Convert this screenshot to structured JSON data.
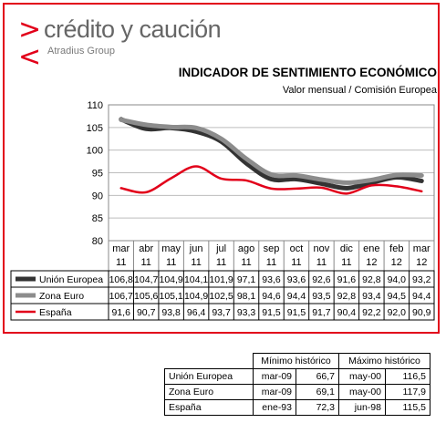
{
  "brand": {
    "name": "crédito y caución",
    "group": "Atradius Group",
    "accent_color": "#e2001a"
  },
  "chart_data": {
    "type": "line",
    "title": "INDICADOR DE SENTIMIENTO ECONÓMICO",
    "subtitle": "Valor mensual / Comisión Europea",
    "categories": [
      [
        "mar",
        "11"
      ],
      [
        "abr",
        "11"
      ],
      [
        "may",
        "11"
      ],
      [
        "jun",
        "11"
      ],
      [
        "jul",
        "11"
      ],
      [
        "ago",
        "11"
      ],
      [
        "sep",
        "11"
      ],
      [
        "oct",
        "11"
      ],
      [
        "nov",
        "11"
      ],
      [
        "dic",
        "11"
      ],
      [
        "ene",
        "12"
      ],
      [
        "feb",
        "12"
      ],
      [
        "mar",
        "12"
      ]
    ],
    "ylim": [
      80,
      110
    ],
    "yticks": [
      80,
      85,
      90,
      95,
      100,
      105,
      110
    ],
    "grid": true,
    "legend": "table-below",
    "series": [
      {
        "name": "Unión Europea",
        "color": "#333333",
        "width": 5,
        "values": [
          106.8,
          104.7,
          104.9,
          104.1,
          101.9,
          97.1,
          93.6,
          93.6,
          92.6,
          91.6,
          92.8,
          94.0,
          93.2
        ],
        "labels": [
          "106,8",
          "104,7",
          "104,9",
          "104,1",
          "101,9",
          "97,1",
          "93,6",
          "93,6",
          "92,6",
          "91,6",
          "92,8",
          "94,0",
          "93,2"
        ]
      },
      {
        "name": "Zona Euro",
        "color": "#8c8c8c",
        "width": 5,
        "values": [
          106.7,
          105.6,
          105.1,
          104.9,
          102.5,
          98.1,
          94.6,
          94.4,
          93.5,
          92.8,
          93.4,
          94.5,
          94.4
        ],
        "labels": [
          "106,7",
          "105,6",
          "105,1",
          "104,9",
          "102,5",
          "98,1",
          "94,6",
          "94,4",
          "93,5",
          "92,8",
          "93,4",
          "94,5",
          "94,4"
        ]
      },
      {
        "name": "España",
        "color": "#e2001a",
        "width": 2.5,
        "values": [
          91.6,
          90.7,
          93.8,
          96.4,
          93.7,
          93.3,
          91.5,
          91.5,
          91.7,
          90.4,
          92.2,
          92.0,
          90.9
        ],
        "labels": [
          "91,6",
          "90,7",
          "93,8",
          "96,4",
          "93,7",
          "93,3",
          "91,5",
          "91,5",
          "91,7",
          "90,4",
          "92,2",
          "92,0",
          "90,9"
        ]
      }
    ]
  },
  "historic": {
    "min_header": "Mínimo histórico",
    "max_header": "Máximo histórico",
    "rows": [
      {
        "name": "Unión Europea",
        "min_date": "mar-09",
        "min_value": "66,7",
        "max_date": "may-00",
        "max_value": "116,5"
      },
      {
        "name": "Zona Euro",
        "min_date": "mar-09",
        "min_value": "69,1",
        "max_date": "may-00",
        "max_value": "117,9"
      },
      {
        "name": "España",
        "min_date": "ene-93",
        "min_value": "72,3",
        "max_date": "jun-98",
        "max_value": "115,5"
      }
    ]
  }
}
